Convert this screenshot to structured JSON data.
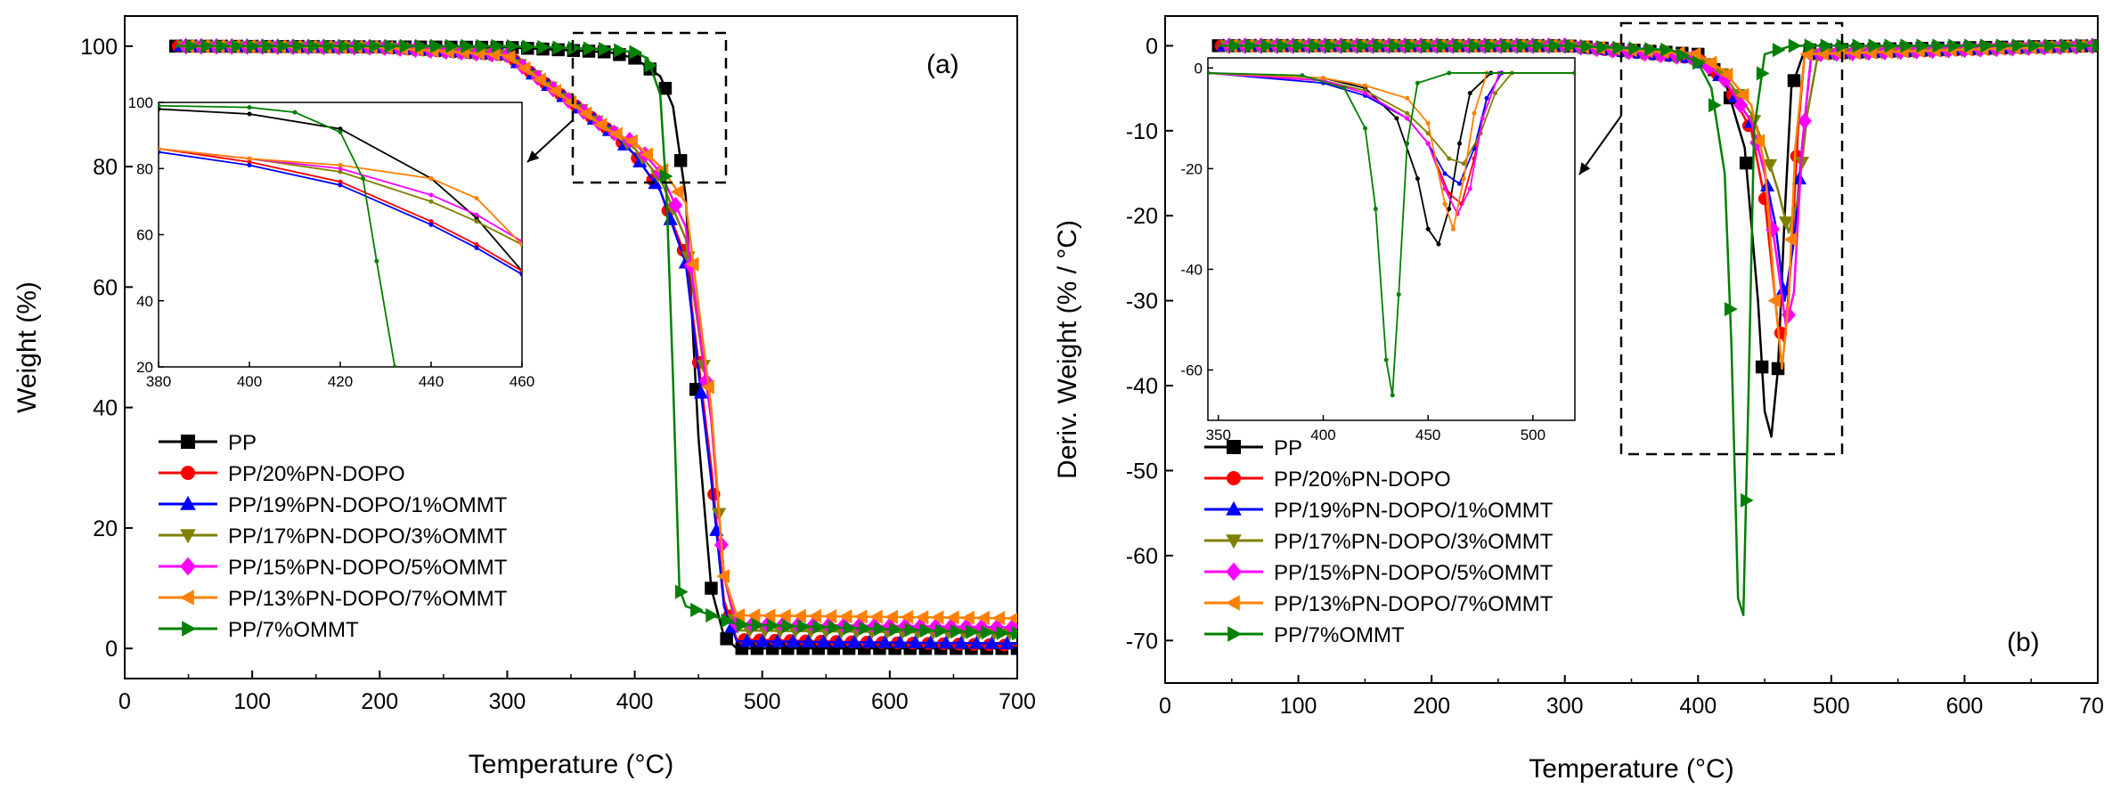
{
  "series_styles": [
    {
      "name": "PP",
      "color": "#000000",
      "marker": "square"
    },
    {
      "name": "PP/20%PN-DOPO",
      "color": "#ff0000",
      "marker": "circle"
    },
    {
      "name": "PP/19%PN-DOPO/1%OMMT",
      "color": "#0000ff",
      "marker": "triangle-up"
    },
    {
      "name": "PP/17%PN-DOPO/3%OMMT",
      "color": "#808000",
      "marker": "triangle-down"
    },
    {
      "name": "PP/15%PN-DOPO/5%OMMT",
      "color": "#ff00ff",
      "marker": "diamond"
    },
    {
      "name": "PP/13%PN-DOPO/7%OMMT",
      "color": "#ff8000",
      "marker": "triangle-left"
    },
    {
      "name": "PP/7%OMMT",
      "color": "#008000",
      "marker": "triangle-right"
    }
  ],
  "chart_data": [
    {
      "type": "line",
      "panel_label": "(a)",
      "xlabel": "Temperature (°C)",
      "ylabel": "Weight (%)",
      "xlim": [
        0,
        700
      ],
      "ylim": [
        -5,
        105
      ],
      "xticks": [
        0,
        100,
        200,
        300,
        400,
        500,
        600,
        700
      ],
      "yticks": [
        0,
        20,
        40,
        60,
        80,
        100
      ],
      "legend_position": "lower-left",
      "series": [
        {
          "name": "PP",
          "x": [
            40,
            300,
            380,
            400,
            420,
            430,
            440,
            450,
            460,
            470,
            480,
            700
          ],
          "y": [
            100,
            99.8,
            99,
            98,
            95,
            90,
            75,
            35,
            10,
            2,
            0,
            0
          ]
        },
        {
          "name": "PP/20%PN-DOPO",
          "x": [
            40,
            200,
            300,
            380,
            400,
            420,
            440,
            460,
            470,
            480,
            700
          ],
          "y": [
            100,
            99.8,
            98.5,
            86,
            82,
            76,
            65,
            30,
            8,
            1.5,
            0.5
          ]
        },
        {
          "name": "PP/19%PN-DOPO/1%OMMT",
          "x": [
            40,
            200,
            300,
            380,
            400,
            420,
            440,
            460,
            470,
            480,
            700
          ],
          "y": [
            100,
            99.8,
            98.5,
            86,
            82,
            76,
            64,
            28,
            7,
            1.2,
            0.8
          ]
        },
        {
          "name": "PP/17%PN-DOPO/3%OMMT",
          "x": [
            40,
            200,
            300,
            380,
            400,
            420,
            440,
            460,
            470,
            480,
            700
          ],
          "y": [
            100,
            99.8,
            98.5,
            86,
            83,
            78,
            68,
            38,
            12,
            3,
            2.5
          ]
        },
        {
          "name": "PP/15%PN-DOPO/5%OMMT",
          "x": [
            40,
            200,
            300,
            380,
            400,
            420,
            440,
            460,
            470,
            480,
            700
          ],
          "y": [
            100,
            99.8,
            98.5,
            86,
            84,
            79,
            70,
            38,
            12,
            4,
            3.5
          ]
        },
        {
          "name": "PP/13%PN-DOPO/7%OMMT",
          "x": [
            40,
            200,
            300,
            380,
            400,
            420,
            440,
            460,
            470,
            480,
            700
          ],
          "y": [
            100,
            99.8,
            98.5,
            86,
            84,
            80,
            74,
            40,
            12,
            5.5,
            5
          ]
        },
        {
          "name": "PP/7%OMMT",
          "x": [
            40,
            300,
            380,
            400,
            410,
            420,
            425,
            430,
            435,
            440,
            460,
            480,
            700
          ],
          "y": [
            100,
            100,
            99.5,
            99,
            98,
            92,
            75,
            45,
            10,
            7,
            5.5,
            4,
            2.5
          ]
        }
      ],
      "inset": {
        "xlim": [
          380,
          460
        ],
        "ylim": [
          20,
          100
        ],
        "xticks": [
          380,
          400,
          420,
          440,
          460
        ],
        "yticks": [
          20,
          40,
          60,
          80,
          100
        ],
        "series": [
          {
            "name": "PP",
            "x": [
              380,
              400,
              420,
              440,
              450,
              460
            ],
            "y": [
              98,
              96.5,
              92,
              77,
              65,
              49
            ]
          },
          {
            "name": "PP/20%PN-DOPO",
            "x": [
              380,
              400,
              420,
              440,
              450,
              460
            ],
            "y": [
              86,
              82,
              76,
              64,
              57,
              49
            ]
          },
          {
            "name": "PP/19%PN-DOPO/1%OMMT",
            "x": [
              380,
              400,
              420,
              440,
              450,
              460
            ],
            "y": [
              85,
              81,
              75,
              63,
              56,
              48
            ]
          },
          {
            "name": "PP/17%PN-DOPO/3%OMMT",
            "x": [
              380,
              400,
              420,
              440,
              450,
              460
            ],
            "y": [
              86,
              83,
              79,
              70,
              64,
              57
            ]
          },
          {
            "name": "PP/15%PN-DOPO/5%OMMT",
            "x": [
              380,
              400,
              420,
              440,
              450,
              460
            ],
            "y": [
              86,
              83,
              80,
              72,
              66,
              58
            ]
          },
          {
            "name": "PP/13%PN-DOPO/7%OMMT",
            "x": [
              380,
              400,
              420,
              440,
              450,
              460
            ],
            "y": [
              86,
              83,
              81,
              77,
              71,
              57
            ]
          },
          {
            "name": "PP/7%OMMT",
            "x": [
              380,
              400,
              410,
              420,
              425,
              428,
              432
            ],
            "y": [
              99,
              98.5,
              97,
              91,
              77,
              52,
              20
            ]
          }
        ]
      }
    },
    {
      "type": "line",
      "panel_label": "(b)",
      "xlabel": "Temperature (°C)",
      "ylabel": "Deriv. Weight (% / °C)",
      "xlim": [
        0,
        700
      ],
      "ylim": [
        -75,
        3.5
      ],
      "xticks": [
        0,
        100,
        200,
        300,
        400,
        500,
        600,
        700
      ],
      "yticks": [
        0,
        -10,
        -20,
        -30,
        -40,
        -50,
        -60,
        -70
      ],
      "legend_position": "lower-left",
      "series": [
        {
          "name": "PP",
          "x": [
            40,
            300,
            400,
            420,
            435,
            445,
            450,
            455,
            460,
            465,
            470,
            480,
            700
          ],
          "y": [
            0,
            0,
            -1,
            -4,
            -12,
            -30,
            -43,
            -46,
            -38,
            -20,
            -5,
            -0.5,
            0
          ]
        },
        {
          "name": "PP/20%PN-DOPO",
          "x": [
            40,
            300,
            400,
            420,
            440,
            450,
            460,
            465,
            470,
            475,
            480,
            700
          ],
          "y": [
            0,
            0,
            -1.5,
            -4,
            -10,
            -18,
            -33,
            -35,
            -25,
            -10,
            -1,
            0
          ]
        },
        {
          "name": "PP/19%PN-DOPO/1%OMMT",
          "x": [
            40,
            300,
            400,
            420,
            440,
            450,
            458,
            465,
            472,
            478,
            485,
            700
          ],
          "y": [
            0,
            0,
            -1.5,
            -4,
            -9,
            -15,
            -21,
            -30,
            -23,
            -12,
            -1,
            0
          ]
        },
        {
          "name": "PP/17%PN-DOPO/3%OMMT",
          "x": [
            40,
            300,
            400,
            420,
            440,
            450,
            460,
            468,
            475,
            482,
            490,
            700
          ],
          "y": [
            0,
            0,
            -1.5,
            -3.5,
            -8,
            -12,
            -17,
            -22,
            -18,
            -8,
            -1,
            0
          ]
        },
        {
          "name": "PP/15%PN-DOPO/5%OMMT",
          "x": [
            40,
            300,
            400,
            420,
            440,
            450,
            460,
            466,
            472,
            478,
            485,
            700
          ],
          "y": [
            0,
            0,
            -1.5,
            -4,
            -9,
            -15,
            -26,
            -33,
            -29,
            -12,
            -1,
            0
          ]
        },
        {
          "name": "PP/13%PN-DOPO/7%OMMT",
          "x": [
            40,
            300,
            400,
            420,
            440,
            450,
            458,
            463,
            468,
            473,
            480,
            700
          ],
          "y": [
            0,
            0,
            -1,
            -3,
            -7,
            -14,
            -30,
            -38,
            -30,
            -12,
            -1,
            0
          ]
        },
        {
          "name": "PP/7%OMMT",
          "x": [
            40,
            300,
            380,
            400,
            410,
            420,
            425,
            430,
            434,
            438,
            442,
            450,
            470,
            700
          ],
          "y": [
            0,
            0,
            -0.5,
            -2,
            -5,
            -15,
            -35,
            -65,
            -67,
            -40,
            -10,
            -1,
            0,
            0
          ]
        }
      ],
      "inset": {
        "xlim": [
          345,
          520
        ],
        "ylim": [
          -70,
          2
        ],
        "xticks": [
          350,
          400,
          450,
          500
        ],
        "yticks": [
          0,
          -20,
          -40,
          -60
        ],
        "series": [
          {
            "name": "PP",
            "x": [
              345,
              400,
              420,
              435,
              445,
              450,
              455,
              460,
              465,
              470,
              480,
              520
            ],
            "y": [
              -1,
              -2,
              -4,
              -10,
              -22,
              -32,
              -35,
              -28,
              -15,
              -5,
              -1,
              -1
            ]
          },
          {
            "name": "PP/20%PN-DOPO",
            "x": [
              345,
              400,
              420,
              440,
              450,
              460,
              466,
              472,
              478,
              485,
              520
            ],
            "y": [
              -1,
              -2.5,
              -5,
              -10,
              -15,
              -25,
              -27,
              -18,
              -6,
              -1,
              -1
            ]
          },
          {
            "name": "PP/19%PN-DOPO/1%OMMT",
            "x": [
              345,
              400,
              420,
              440,
              450,
              458,
              465,
              472,
              478,
              485,
              520
            ],
            "y": [
              -1,
              -3,
              -5.5,
              -10,
              -15,
              -21,
              -23,
              -16,
              -6,
              -1,
              -1
            ]
          },
          {
            "name": "PP/17%PN-DOPO/3%OMMT",
            "x": [
              345,
              400,
              420,
              440,
              450,
              460,
              467,
              475,
              482,
              490,
              520
            ],
            "y": [
              -1,
              -2.5,
              -4.5,
              -9,
              -13,
              -18,
              -19,
              -13,
              -5,
              -1,
              -1
            ]
          },
          {
            "name": "PP/15%PN-DOPO/5%OMMT",
            "x": [
              345,
              400,
              420,
              440,
              450,
              458,
              464,
              470,
              476,
              484,
              520
            ],
            "y": [
              -1,
              -2.5,
              -5,
              -10,
              -15,
              -24,
              -29,
              -24,
              -10,
              -1,
              -1
            ]
          },
          {
            "name": "PP/13%PN-DOPO/7%OMMT",
            "x": [
              345,
              400,
              420,
              440,
              450,
              458,
              462,
              467,
              472,
              478,
              520
            ],
            "y": [
              -1,
              -2,
              -3.5,
              -6,
              -11,
              -27,
              -32,
              -22,
              -9,
              -1,
              -1
            ]
          },
          {
            "name": "PP/7%OMMT",
            "x": [
              345,
              390,
              410,
              420,
              425,
              430,
              433,
              436,
              440,
              445,
              460,
              520
            ],
            "y": [
              -1,
              -1.5,
              -4,
              -12,
              -28,
              -58,
              -65,
              -45,
              -15,
              -3,
              -1,
              -1
            ]
          }
        ]
      }
    }
  ]
}
